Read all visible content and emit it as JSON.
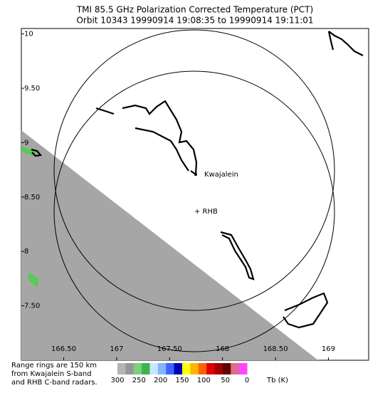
{
  "title": {
    "line1": "TMI 85.5 GHz Polarization Corrected Temperature (PCT)",
    "line2": "Orbit 10343 19990914 19:08:35 to 19990914 19:11:01"
  },
  "map": {
    "lon_range": [
      166.1,
      169.38
    ],
    "lat_range": [
      7.0,
      10.05
    ],
    "lon_ticks": [
      {
        "value": 166.5,
        "label": "166.50"
      },
      167,
      {
        "value": 167.5,
        "label": "167.50"
      },
      168,
      {
        "value": 168.5,
        "label": "168.50"
      },
      169
    ],
    "lat_ticks": [
      10,
      {
        "value": 9.5,
        "label": "9.50"
      },
      9,
      {
        "value": 8.5,
        "label": "8.50"
      },
      8,
      {
        "value": 7.5,
        "label": "7.50"
      }
    ],
    "kwajalein": "Kwajalein",
    "rhb": "+ RHB"
  },
  "note": [
    "Range rings are 150 km",
    "from Kwajalein S-band",
    "and RHB C-band radars."
  ],
  "colorbar": {
    "colors": [
      "#b4b4b4",
      "#969696",
      "#7ccd7c",
      "#3cb44b",
      "#c8e6ff",
      "#82b4ff",
      "#3c64ff",
      "#0000b4",
      "#ffff00",
      "#ffb400",
      "#ff6400",
      "#e10000",
      "#a00000",
      "#640000",
      "#dc6e8c",
      "#ff46ff"
    ],
    "labels": [
      300,
      250,
      200,
      150,
      100,
      50,
      0
    ],
    "unit": "Tb (K)"
  }
}
